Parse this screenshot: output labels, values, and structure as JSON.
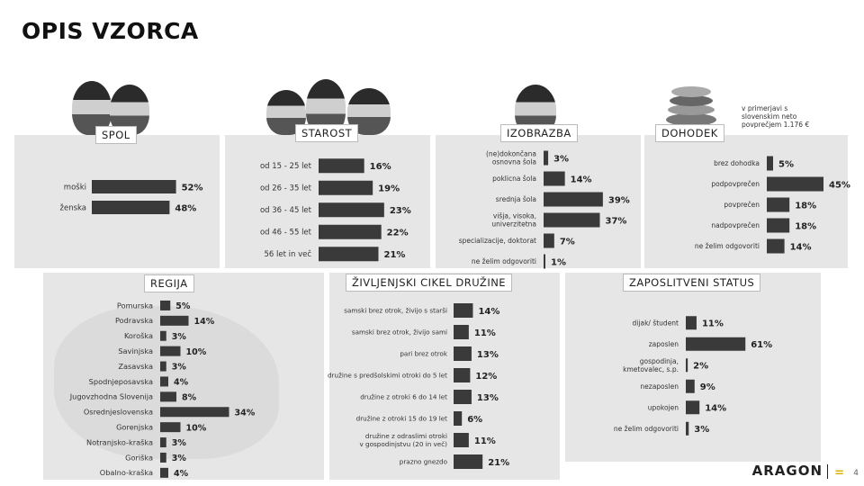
{
  "title": "OPIS VZORCA",
  "income_note": "v primerjavi s\nslovenskim neto\npovprečjem 1.176 €",
  "footer": {
    "logo": "ARAGON",
    "page": "4"
  },
  "chart_data": [
    {
      "id": "spol",
      "type": "bar",
      "title": "SPOL",
      "categories": [
        "moški",
        "ženska"
      ],
      "values": [
        52,
        48
      ],
      "value_labels": [
        "52%",
        "48%"
      ],
      "max": 60
    },
    {
      "id": "starost",
      "type": "bar",
      "title": "STAROST",
      "categories": [
        "od 15 - 25 let",
        "od 26 - 35 let",
        "od 36 - 45 let",
        "od 46 - 55 let",
        "56 let in več"
      ],
      "values": [
        16,
        19,
        23,
        22,
        21
      ],
      "value_labels": [
        "16%",
        "19%",
        "23%",
        "22%",
        "21%"
      ],
      "max": 30
    },
    {
      "id": "izobrazba",
      "type": "bar",
      "title": "IZOBRAZBA",
      "categories": [
        "(ne)dokončana\nosnovna šola",
        "poklicna šola",
        "srednja šola",
        "višja, visoka,\nuniverzitetna",
        "specializacije, doktorat",
        "ne želim odgovoriti"
      ],
      "values": [
        3,
        14,
        39,
        37,
        7,
        1
      ],
      "value_labels": [
        "3%",
        "14%",
        "39%",
        "37%",
        "7%",
        "1%"
      ],
      "max": 45
    },
    {
      "id": "dohodek",
      "type": "bar",
      "title": "DOHODEK",
      "categories": [
        "brez dohodka",
        "podpovprečen",
        "povprečen",
        "nadpovprečen",
        "ne želim odgovoriti"
      ],
      "values": [
        5,
        45,
        18,
        18,
        14
      ],
      "value_labels": [
        "5%",
        "45%",
        "18%",
        "18%",
        "14%"
      ],
      "max": 50
    },
    {
      "id": "regija",
      "type": "bar",
      "title": "REGIJA",
      "categories": [
        "Pomurska",
        "Podravska",
        "Koroška",
        "Savinjska",
        "Zasavska",
        "Spodnjeposavska",
        "Jugovzhodna Slovenija",
        "Osrednjeslovenska",
        "Gorenjska",
        "Notranjsko-kraška",
        "Goriška",
        "Obalno-kraška"
      ],
      "values": [
        5,
        14,
        3,
        10,
        3,
        4,
        8,
        34,
        10,
        3,
        3,
        4
      ],
      "value_labels": [
        "5%",
        "14%",
        "3%",
        "10%",
        "3%",
        "4%",
        "8%",
        "34%",
        "10%",
        "3%",
        "3%",
        "4%"
      ],
      "max": 40
    },
    {
      "id": "zivljenjski",
      "type": "bar",
      "title": "ŽIVLJENJSKI CIKEL DRUŽINE",
      "categories": [
        "samski brez otrok, živijo s starši",
        "samski brez otrok, živijo sami",
        "pari brez otrok",
        "družine s predšolskimi otroki do 5 let",
        "družine z otroki 6 do 14 let",
        "družine z otroki 15 do 19 let",
        "družine z odraslimi otroki\nv gospodinjstvu (20 in več)",
        "prazno gnezdo"
      ],
      "values": [
        14,
        11,
        13,
        12,
        13,
        6,
        11,
        21
      ],
      "value_labels": [
        "14%",
        "11%",
        "13%",
        "12%",
        "13%",
        "6%",
        "11%",
        "21%"
      ],
      "max": 30
    },
    {
      "id": "zaposlitveni",
      "type": "bar",
      "title": "ZAPOSLITVENI STATUS",
      "categories": [
        "dijak/ študent",
        "zaposlen",
        "gospodinja,\nkmetovalec, s.p.",
        "nezaposlen",
        "upokojen",
        "ne želim odgovoriti"
      ],
      "values": [
        11,
        61,
        2,
        9,
        14,
        3
      ],
      "value_labels": [
        "11%",
        "61%",
        "2%",
        "9%",
        "14%",
        "3%"
      ],
      "max": 70
    }
  ]
}
